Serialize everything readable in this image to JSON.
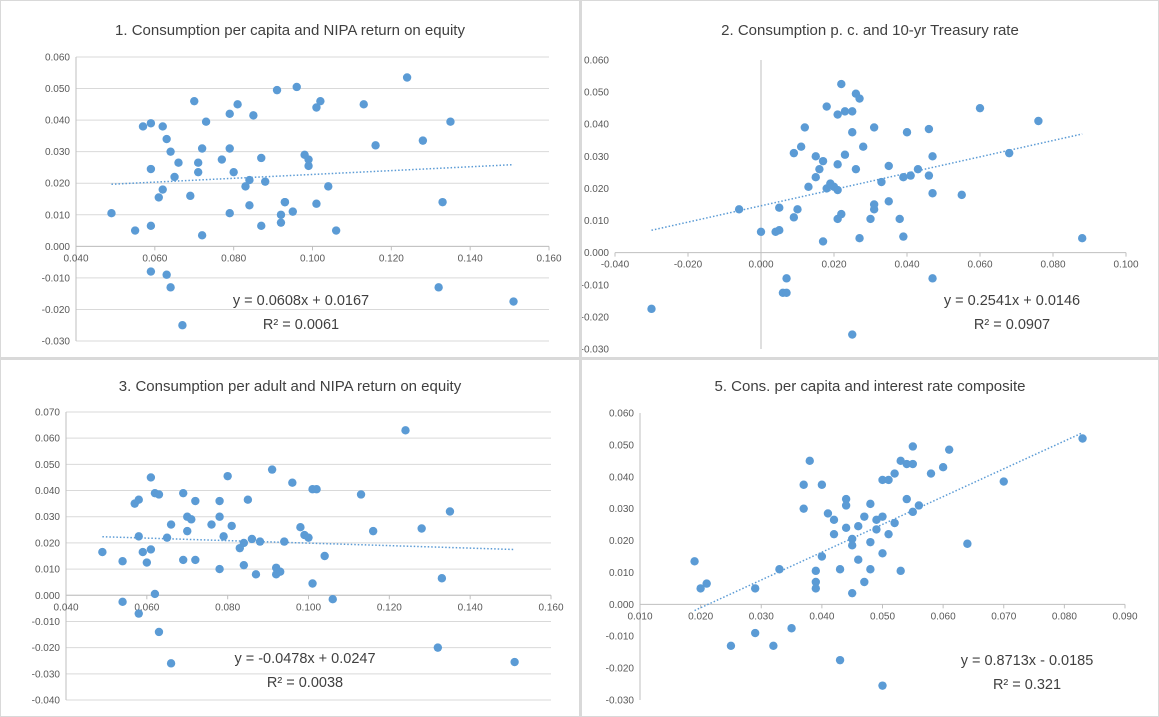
{
  "colors": {
    "point": "#5b9bd5",
    "trend": "#5b9bd5",
    "grid": "#d9d9d9",
    "axis": "#bfbfbf",
    "text": "#404040"
  },
  "chart_data": [
    {
      "type": "scatter",
      "title": "1. Consumption per capita and NIPA return on equity",
      "xlim": [
        0.04,
        0.16
      ],
      "ylim": [
        -0.03,
        0.06
      ],
      "x_ticks": [
        "0.040",
        "0.060",
        "0.080",
        "0.100",
        "0.120",
        "0.140",
        "0.160"
      ],
      "y_ticks": [
        "0.060",
        "0.050",
        "0.040",
        "0.030",
        "0.020",
        "0.010",
        "0.000",
        "-0.010",
        "-0.020",
        "-0.030"
      ],
      "grid": "horizontal",
      "trendline": {
        "slope": 0.0608,
        "intercept": 0.0167,
        "x_range": [
          0.049,
          0.151
        ]
      },
      "equation": "y = 0.0608x + 0.0167",
      "r_squared": "R² = 0.0061",
      "points": [
        [
          0.049,
          0.0105
        ],
        [
          0.055,
          0.005
        ],
        [
          0.057,
          0.038
        ],
        [
          0.059,
          0.039
        ],
        [
          0.059,
          0.0245
        ],
        [
          0.059,
          0.0065
        ],
        [
          0.059,
          -0.008
        ],
        [
          0.061,
          0.0155
        ],
        [
          0.062,
          0.038
        ],
        [
          0.062,
          0.018
        ],
        [
          0.063,
          0.034
        ],
        [
          0.063,
          -0.009
        ],
        [
          0.064,
          0.03
        ],
        [
          0.064,
          -0.013
        ],
        [
          0.065,
          0.022
        ],
        [
          0.066,
          0.0265
        ],
        [
          0.067,
          -0.025
        ],
        [
          0.069,
          0.016
        ],
        [
          0.07,
          0.046
        ],
        [
          0.071,
          0.0265
        ],
        [
          0.071,
          0.0235
        ],
        [
          0.072,
          0.031
        ],
        [
          0.072,
          0.0035
        ],
        [
          0.073,
          0.0395
        ],
        [
          0.077,
          0.0275
        ],
        [
          0.079,
          0.042
        ],
        [
          0.079,
          0.031
        ],
        [
          0.079,
          0.0105
        ],
        [
          0.08,
          0.0235
        ],
        [
          0.081,
          0.045
        ],
        [
          0.083,
          0.019
        ],
        [
          0.084,
          0.021
        ],
        [
          0.084,
          0.013
        ],
        [
          0.085,
          0.0415
        ],
        [
          0.087,
          0.028
        ],
        [
          0.087,
          0.0065
        ],
        [
          0.088,
          0.0205
        ],
        [
          0.091,
          0.0495
        ],
        [
          0.092,
          0.01
        ],
        [
          0.092,
          0.0075
        ],
        [
          0.093,
          0.014
        ],
        [
          0.093,
          0.014
        ],
        [
          0.095,
          0.011
        ],
        [
          0.096,
          0.0505
        ],
        [
          0.098,
          0.029
        ],
        [
          0.099,
          0.0255
        ],
        [
          0.099,
          0.0275
        ],
        [
          0.101,
          0.044
        ],
        [
          0.101,
          0.0135
        ],
        [
          0.102,
          0.046
        ],
        [
          0.104,
          0.019
        ],
        [
          0.106,
          0.005
        ],
        [
          0.113,
          0.045
        ],
        [
          0.116,
          0.032
        ],
        [
          0.124,
          0.0535
        ],
        [
          0.128,
          0.0335
        ],
        [
          0.132,
          -0.013
        ],
        [
          0.133,
          0.014
        ],
        [
          0.135,
          0.0395
        ],
        [
          0.151,
          -0.0175
        ]
      ]
    },
    {
      "type": "scatter",
      "title": "2. Consumption p. c. and 10-yr Treasury rate",
      "xlim": [
        -0.04,
        0.1
      ],
      "ylim": [
        -0.03,
        0.06
      ],
      "x_ticks": [
        "-0.040",
        "-0.020",
        "0.000",
        "0.020",
        "0.040",
        "0.060",
        "0.080",
        "0.100"
      ],
      "y_ticks": [
        "0.060",
        "0.050",
        "0.040",
        "0.030",
        "0.020",
        "0.010",
        "0.000",
        "-0.010",
        "-0.020",
        "-0.030"
      ],
      "grid": "none",
      "trendline": {
        "slope": 0.2541,
        "intercept": 0.0146,
        "x_range": [
          -0.03,
          0.088
        ]
      },
      "equation": "y = 0.2541x + 0.0146",
      "r_squared": "R² = 0.0907",
      "points": [
        [
          -0.03,
          -0.0175
        ],
        [
          -0.006,
          0.0135
        ],
        [
          0.0,
          0.0065
        ],
        [
          0.004,
          0.0065
        ],
        [
          0.005,
          0.014
        ],
        [
          0.005,
          0.007
        ],
        [
          0.006,
          -0.0125
        ],
        [
          0.007,
          -0.0125
        ],
        [
          0.007,
          -0.008
        ],
        [
          0.009,
          0.031
        ],
        [
          0.009,
          0.011
        ],
        [
          0.01,
          0.0135
        ],
        [
          0.011,
          0.033
        ],
        [
          0.012,
          0.039
        ],
        [
          0.013,
          0.0205
        ],
        [
          0.015,
          0.03
        ],
        [
          0.015,
          0.0235
        ],
        [
          0.016,
          0.026
        ],
        [
          0.017,
          0.0285
        ],
        [
          0.017,
          0.0035
        ],
        [
          0.018,
          0.0455
        ],
        [
          0.018,
          0.02
        ],
        [
          0.019,
          0.0215
        ],
        [
          0.02,
          0.0205
        ],
        [
          0.021,
          0.043
        ],
        [
          0.021,
          0.0275
        ],
        [
          0.021,
          0.0195
        ],
        [
          0.021,
          0.0105
        ],
        [
          0.022,
          0.0525
        ],
        [
          0.022,
          0.012
        ],
        [
          0.023,
          0.044
        ],
        [
          0.023,
          0.0305
        ],
        [
          0.025,
          0.0375
        ],
        [
          0.025,
          0.044
        ],
        [
          0.025,
          -0.0255
        ],
        [
          0.026,
          0.0495
        ],
        [
          0.026,
          0.026
        ],
        [
          0.027,
          0.048
        ],
        [
          0.027,
          0.0045
        ],
        [
          0.028,
          0.033
        ],
        [
          0.03,
          0.0105
        ],
        [
          0.031,
          0.039
        ],
        [
          0.031,
          0.0135
        ],
        [
          0.031,
          0.015
        ],
        [
          0.033,
          0.022
        ],
        [
          0.035,
          0.027
        ],
        [
          0.035,
          0.016
        ],
        [
          0.038,
          0.0105
        ],
        [
          0.039,
          0.0235
        ],
        [
          0.039,
          0.005
        ],
        [
          0.04,
          0.0375
        ],
        [
          0.041,
          0.024
        ],
        [
          0.043,
          0.026
        ],
        [
          0.046,
          0.0385
        ],
        [
          0.046,
          0.024
        ],
        [
          0.047,
          0.03
        ],
        [
          0.047,
          0.0185
        ],
        [
          0.047,
          -0.008
        ],
        [
          0.055,
          0.018
        ],
        [
          0.06,
          0.045
        ],
        [
          0.068,
          0.031
        ],
        [
          0.076,
          0.041
        ],
        [
          0.088,
          0.0045
        ]
      ]
    },
    {
      "type": "scatter",
      "title": "3. Consumption per adult and NIPA return on equity",
      "xlim": [
        0.04,
        0.16
      ],
      "ylim": [
        -0.04,
        0.07
      ],
      "x_ticks": [
        "0.040",
        "0.060",
        "0.080",
        "0.100",
        "0.120",
        "0.140",
        "0.160"
      ],
      "y_ticks": [
        "0.070",
        "0.060",
        "0.050",
        "0.040",
        "0.030",
        "0.020",
        "0.010",
        "0.000",
        "-0.010",
        "-0.020",
        "-0.030",
        "-0.040"
      ],
      "grid": "horizontal",
      "trendline": {
        "slope": -0.0478,
        "intercept": 0.0247,
        "x_range": [
          0.049,
          0.151
        ]
      },
      "equation": "y = -0.0478x + 0.0247",
      "r_squared": "R² = 0.0038",
      "points": [
        [
          0.049,
          0.0165
        ],
        [
          0.054,
          0.013
        ],
        [
          0.054,
          -0.0025
        ],
        [
          0.057,
          0.035
        ],
        [
          0.058,
          0.0365
        ],
        [
          0.058,
          0.0225
        ],
        [
          0.058,
          -0.007
        ],
        [
          0.059,
          0.0165
        ],
        [
          0.06,
          0.0125
        ],
        [
          0.061,
          0.045
        ],
        [
          0.061,
          0.0175
        ],
        [
          0.062,
          0.039
        ],
        [
          0.062,
          0.0005
        ],
        [
          0.063,
          0.0385
        ],
        [
          0.063,
          -0.014
        ],
        [
          0.065,
          0.022
        ],
        [
          0.066,
          0.027
        ],
        [
          0.066,
          -0.026
        ],
        [
          0.069,
          0.0135
        ],
        [
          0.069,
          0.039
        ],
        [
          0.07,
          0.03
        ],
        [
          0.07,
          0.0245
        ],
        [
          0.071,
          0.029
        ],
        [
          0.072,
          0.036
        ],
        [
          0.072,
          0.0135
        ],
        [
          0.076,
          0.027
        ],
        [
          0.078,
          0.036
        ],
        [
          0.078,
          0.03
        ],
        [
          0.078,
          0.01
        ],
        [
          0.079,
          0.0225
        ],
        [
          0.08,
          0.0455
        ],
        [
          0.081,
          0.0265
        ],
        [
          0.083,
          0.018
        ],
        [
          0.084,
          0.02
        ],
        [
          0.084,
          0.0115
        ],
        [
          0.085,
          0.0365
        ],
        [
          0.086,
          0.0215
        ],
        [
          0.087,
          0.008
        ],
        [
          0.088,
          0.0205
        ],
        [
          0.091,
          0.048
        ],
        [
          0.092,
          0.0105
        ],
        [
          0.092,
          0.008
        ],
        [
          0.093,
          0.009
        ],
        [
          0.094,
          0.0205
        ],
        [
          0.096,
          0.043
        ],
        [
          0.098,
          0.026
        ],
        [
          0.099,
          0.023
        ],
        [
          0.1,
          0.022
        ],
        [
          0.101,
          0.0405
        ],
        [
          0.101,
          0.0045
        ],
        [
          0.102,
          0.0405
        ],
        [
          0.104,
          0.015
        ],
        [
          0.106,
          -0.0015
        ],
        [
          0.113,
          0.0385
        ],
        [
          0.116,
          0.0245
        ],
        [
          0.124,
          0.063
        ],
        [
          0.128,
          0.0255
        ],
        [
          0.132,
          -0.02
        ],
        [
          0.133,
          0.0065
        ],
        [
          0.135,
          0.032
        ],
        [
          0.151,
          -0.0255
        ]
      ]
    },
    {
      "type": "scatter",
      "title": "5. Cons. per capita and interest rate composite",
      "xlim": [
        0.01,
        0.09
      ],
      "ylim": [
        -0.03,
        0.06
      ],
      "x_ticks": [
        "0.010",
        "0.020",
        "0.030",
        "0.040",
        "0.050",
        "0.060",
        "0.070",
        "0.080",
        "0.090"
      ],
      "y_ticks": [
        "0.060",
        "0.050",
        "0.040",
        "0.030",
        "0.020",
        "0.010",
        "0.000",
        "-0.010",
        "-0.020",
        "-0.030"
      ],
      "grid": "none",
      "trendline": {
        "slope": 0.8713,
        "intercept": -0.0185,
        "x_range": [
          0.019,
          0.083
        ]
      },
      "equation": "y = 0.8713x - 0.0185",
      "r_squared": "R² = 0.321",
      "points": [
        [
          0.019,
          0.0135
        ],
        [
          0.02,
          0.005
        ],
        [
          0.021,
          0.0065
        ],
        [
          0.025,
          -0.013
        ],
        [
          0.029,
          0.005
        ],
        [
          0.029,
          -0.009
        ],
        [
          0.032,
          -0.013
        ],
        [
          0.033,
          0.011
        ],
        [
          0.035,
          -0.0075
        ],
        [
          0.037,
          0.0375
        ],
        [
          0.037,
          0.03
        ],
        [
          0.038,
          0.045
        ],
        [
          0.039,
          0.007
        ],
        [
          0.039,
          0.005
        ],
        [
          0.039,
          0.0105
        ],
        [
          0.04,
          0.015
        ],
        [
          0.04,
          0.0375
        ],
        [
          0.041,
          0.0285
        ],
        [
          0.042,
          0.0265
        ],
        [
          0.042,
          0.022
        ],
        [
          0.043,
          -0.0175
        ],
        [
          0.043,
          0.011
        ],
        [
          0.044,
          0.033
        ],
        [
          0.044,
          0.031
        ],
        [
          0.044,
          0.024
        ],
        [
          0.045,
          0.0205
        ],
        [
          0.045,
          0.0185
        ],
        [
          0.045,
          0.0035
        ],
        [
          0.046,
          0.0245
        ],
        [
          0.046,
          0.014
        ],
        [
          0.047,
          0.007
        ],
        [
          0.047,
          0.0275
        ],
        [
          0.048,
          0.0315
        ],
        [
          0.048,
          0.0195
        ],
        [
          0.048,
          0.011
        ],
        [
          0.049,
          0.0265
        ],
        [
          0.049,
          0.0235
        ],
        [
          0.05,
          0.039
        ],
        [
          0.05,
          0.016
        ],
        [
          0.05,
          0.0275
        ],
        [
          0.05,
          -0.0255
        ],
        [
          0.051,
          0.039
        ],
        [
          0.051,
          0.022
        ],
        [
          0.052,
          0.041
        ],
        [
          0.052,
          0.0255
        ],
        [
          0.053,
          0.0105
        ],
        [
          0.053,
          0.045
        ],
        [
          0.054,
          0.044
        ],
        [
          0.054,
          0.033
        ],
        [
          0.055,
          0.0495
        ],
        [
          0.055,
          0.029
        ],
        [
          0.055,
          0.044
        ],
        [
          0.056,
          0.031
        ],
        [
          0.058,
          0.041
        ],
        [
          0.06,
          0.043
        ],
        [
          0.061,
          0.0485
        ],
        [
          0.064,
          0.019
        ],
        [
          0.07,
          0.0385
        ],
        [
          0.083,
          0.052
        ]
      ]
    }
  ]
}
